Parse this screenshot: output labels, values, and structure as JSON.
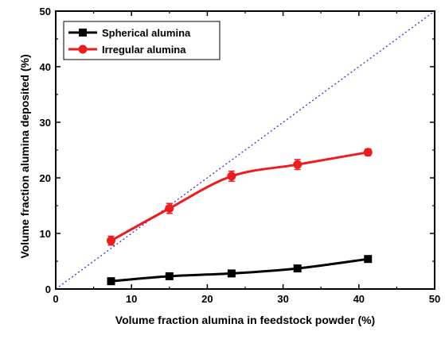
{
  "chart_data": {
    "type": "line",
    "xlabel": "Volume fraction alumina in feedstock powder (%)",
    "ylabel": "Volume fraction alumina deposited (%)",
    "xlim": [
      0,
      50
    ],
    "ylim": [
      0,
      50
    ],
    "xticks": [
      "0",
      "10",
      "20",
      "30",
      "40",
      "50"
    ],
    "yticks": [
      "0",
      "10",
      "20",
      "30",
      "40",
      "50"
    ],
    "grid": false,
    "legend": "top-left",
    "reference_line": {
      "x": [
        0,
        50
      ],
      "y": [
        0,
        50
      ],
      "style": "dotted",
      "color": "#3333cc"
    },
    "series": [
      {
        "name": "Spherical alumina",
        "color": "#000000",
        "marker": "square",
        "x": [
          7.3,
          15.0,
          23.2,
          31.9,
          41.2
        ],
        "y": [
          1.4,
          2.3,
          2.8,
          3.7,
          5.4
        ],
        "error": [
          0.4,
          0.4,
          0.4,
          0.4,
          0.5
        ]
      },
      {
        "name": "Irregular alumina",
        "color": "#ee1c1c",
        "marker": "circle",
        "x": [
          7.3,
          15.0,
          23.2,
          31.9,
          41.2
        ],
        "y": [
          8.7,
          14.5,
          20.3,
          22.4,
          24.6
        ],
        "error": [
          0.8,
          0.9,
          0.9,
          0.9,
          0.6
        ]
      }
    ]
  }
}
